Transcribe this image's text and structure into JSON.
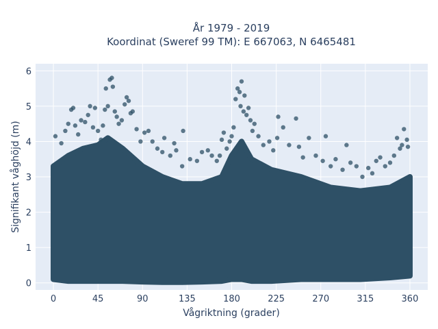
{
  "title_line1": "År 1979 - 2019",
  "title_line2": "Koordinat (Sweref 99 TM): E 667063, N 6465481",
  "chart_data": {
    "type": "scatter",
    "title": "År 1979 - 2019 Koordinat (Sweref 99 TM): E 667063, N 6465481",
    "xlabel": "Vågriktning (grader)",
    "ylabel": "Signifikant våghöjd (m)",
    "xlim": [
      -18,
      378
    ],
    "ylim": [
      -0.2,
      6.2
    ],
    "xticks": [
      0,
      45,
      90,
      135,
      180,
      225,
      270,
      315,
      360
    ],
    "xtick_labels": [
      "0",
      "45",
      "90",
      "135",
      "180",
      "225",
      "270",
      "315",
      "360"
    ],
    "yticks": [
      0,
      1,
      2,
      3,
      4,
      5,
      6
    ],
    "ytick_labels": [
      "0",
      "1",
      "2",
      "3",
      "4",
      "5",
      "6"
    ],
    "grid": true,
    "marker_color": "#2e5066",
    "background_color": "#e5ecf6",
    "density_envelope": {
      "x": [
        0,
        15,
        30,
        45,
        55,
        70,
        90,
        110,
        130,
        150,
        170,
        180,
        190,
        200,
        220,
        250,
        280,
        310,
        340,
        360
      ],
      "y_upper": [
        3.3,
        3.6,
        3.8,
        3.9,
        4.1,
        3.8,
        3.3,
        3.0,
        2.8,
        2.8,
        3.0,
        3.6,
        4.0,
        3.5,
        3.2,
        3.0,
        2.7,
        2.6,
        2.7,
        3.0
      ],
      "y_lower": [
        0.1,
        0.05,
        0.05,
        0.05,
        0.05,
        0.05,
        0.03,
        0.02,
        0.02,
        0.03,
        0.05,
        0.1,
        0.1,
        0.05,
        0.05,
        0.1,
        0.1,
        0.1,
        0.15,
        0.2
      ]
    },
    "points": [
      {
        "x": 2,
        "y": 4.15
      },
      {
        "x": 8,
        "y": 3.95
      },
      {
        "x": 12,
        "y": 4.3
      },
      {
        "x": 15,
        "y": 4.5
      },
      {
        "x": 18,
        "y": 4.9
      },
      {
        "x": 20,
        "y": 4.95
      },
      {
        "x": 22,
        "y": 4.45
      },
      {
        "x": 25,
        "y": 4.2
      },
      {
        "x": 28,
        "y": 4.6
      },
      {
        "x": 32,
        "y": 4.55
      },
      {
        "x": 35,
        "y": 4.75
      },
      {
        "x": 37,
        "y": 5.0
      },
      {
        "x": 40,
        "y": 4.4
      },
      {
        "x": 42,
        "y": 4.95
      },
      {
        "x": 45,
        "y": 4.3
      },
      {
        "x": 48,
        "y": 4.05
      },
      {
        "x": 50,
        "y": 4.45
      },
      {
        "x": 52,
        "y": 4.9
      },
      {
        "x": 53,
        "y": 5.5
      },
      {
        "x": 55,
        "y": 5.0
      },
      {
        "x": 57,
        "y": 5.75
      },
      {
        "x": 59,
        "y": 5.8
      },
      {
        "x": 60,
        "y": 5.55
      },
      {
        "x": 62,
        "y": 4.85
      },
      {
        "x": 64,
        "y": 4.7
      },
      {
        "x": 66,
        "y": 4.5
      },
      {
        "x": 69,
        "y": 4.6
      },
      {
        "x": 72,
        "y": 5.05
      },
      {
        "x": 74,
        "y": 5.25
      },
      {
        "x": 76,
        "y": 5.15
      },
      {
        "x": 78,
        "y": 4.8
      },
      {
        "x": 80,
        "y": 4.85
      },
      {
        "x": 84,
        "y": 4.35
      },
      {
        "x": 88,
        "y": 4.0
      },
      {
        "x": 92,
        "y": 4.25
      },
      {
        "x": 96,
        "y": 4.3
      },
      {
        "x": 100,
        "y": 4.0
      },
      {
        "x": 105,
        "y": 3.8
      },
      {
        "x": 110,
        "y": 3.7
      },
      {
        "x": 112,
        "y": 4.1
      },
      {
        "x": 118,
        "y": 3.6
      },
      {
        "x": 122,
        "y": 3.95
      },
      {
        "x": 124,
        "y": 3.75
      },
      {
        "x": 130,
        "y": 3.3
      },
      {
        "x": 131,
        "y": 4.3
      },
      {
        "x": 138,
        "y": 3.5
      },
      {
        "x": 145,
        "y": 3.45
      },
      {
        "x": 150,
        "y": 3.7
      },
      {
        "x": 156,
        "y": 3.75
      },
      {
        "x": 160,
        "y": 3.6
      },
      {
        "x": 165,
        "y": 3.45
      },
      {
        "x": 168,
        "y": 3.6
      },
      {
        "x": 170,
        "y": 4.05
      },
      {
        "x": 172,
        "y": 4.25
      },
      {
        "x": 175,
        "y": 3.8
      },
      {
        "x": 178,
        "y": 4.0
      },
      {
        "x": 180,
        "y": 4.15
      },
      {
        "x": 182,
        "y": 4.4
      },
      {
        "x": 184,
        "y": 5.2
      },
      {
        "x": 186,
        "y": 5.5
      },
      {
        "x": 188,
        "y": 5.4
      },
      {
        "x": 189,
        "y": 5.0
      },
      {
        "x": 190,
        "y": 5.7
      },
      {
        "x": 192,
        "y": 4.85
      },
      {
        "x": 193,
        "y": 5.3
      },
      {
        "x": 195,
        "y": 4.75
      },
      {
        "x": 197,
        "y": 4.95
      },
      {
        "x": 199,
        "y": 4.6
      },
      {
        "x": 201,
        "y": 4.3
      },
      {
        "x": 203,
        "y": 4.5
      },
      {
        "x": 207,
        "y": 4.15
      },
      {
        "x": 212,
        "y": 3.9
      },
      {
        "x": 218,
        "y": 4.0
      },
      {
        "x": 222,
        "y": 3.75
      },
      {
        "x": 226,
        "y": 4.1
      },
      {
        "x": 227,
        "y": 4.7
      },
      {
        "x": 232,
        "y": 4.4
      },
      {
        "x": 238,
        "y": 3.9
      },
      {
        "x": 245,
        "y": 4.65
      },
      {
        "x": 248,
        "y": 3.85
      },
      {
        "x": 252,
        "y": 3.55
      },
      {
        "x": 258,
        "y": 4.1
      },
      {
        "x": 265,
        "y": 3.6
      },
      {
        "x": 272,
        "y": 3.45
      },
      {
        "x": 275,
        "y": 4.15
      },
      {
        "x": 280,
        "y": 3.3
      },
      {
        "x": 285,
        "y": 3.5
      },
      {
        "x": 292,
        "y": 3.2
      },
      {
        "x": 296,
        "y": 3.9
      },
      {
        "x": 300,
        "y": 3.4
      },
      {
        "x": 306,
        "y": 3.3
      },
      {
        "x": 312,
        "y": 3.0
      },
      {
        "x": 318,
        "y": 3.25
      },
      {
        "x": 322,
        "y": 3.1
      },
      {
        "x": 326,
        "y": 3.45
      },
      {
        "x": 330,
        "y": 3.55
      },
      {
        "x": 335,
        "y": 3.3
      },
      {
        "x": 340,
        "y": 3.4
      },
      {
        "x": 344,
        "y": 3.6
      },
      {
        "x": 347,
        "y": 4.1
      },
      {
        "x": 350,
        "y": 3.8
      },
      {
        "x": 352,
        "y": 3.9
      },
      {
        "x": 354,
        "y": 4.35
      },
      {
        "x": 357,
        "y": 4.05
      },
      {
        "x": 358,
        "y": 3.85
      }
    ]
  }
}
